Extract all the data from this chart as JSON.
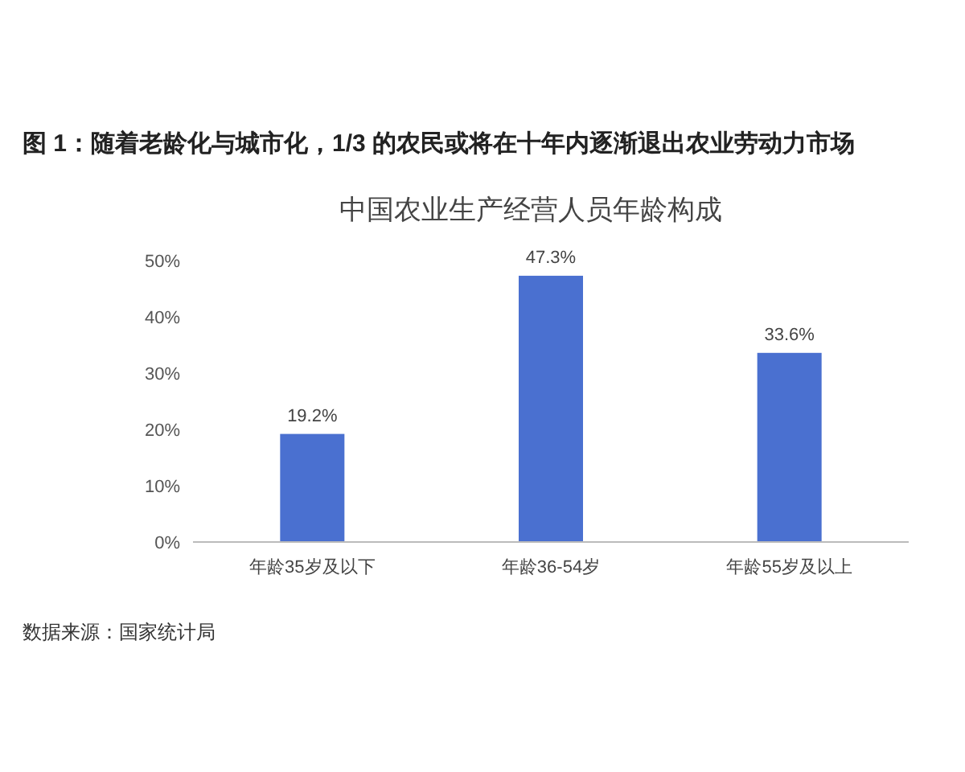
{
  "chart_data": {
    "type": "bar",
    "title": "图 1：随着老龄化与城市化，1/3 的农民或将在十年内逐渐退出农业劳动力市场",
    "subtitle": "中国农业生产经营人员年龄构成",
    "categories": [
      "年龄35岁及以下",
      "年龄36-54岁",
      "年龄55岁及以上"
    ],
    "values": [
      19.2,
      47.3,
      33.6
    ],
    "value_labels": [
      "19.2%",
      "47.3%",
      "33.6%"
    ],
    "color": "#4a70d0",
    "ylim": [
      0,
      50
    ],
    "yticks": [
      {
        "value": 0,
        "label": "0%"
      },
      {
        "value": 10,
        "label": "10%"
      },
      {
        "value": 20,
        "label": "20%"
      },
      {
        "value": 30,
        "label": "30%"
      },
      {
        "value": 40,
        "label": "40%"
      },
      {
        "value": 50,
        "label": "50%"
      }
    ],
    "annotations": [
      "数据来源：国家统计局"
    ]
  }
}
